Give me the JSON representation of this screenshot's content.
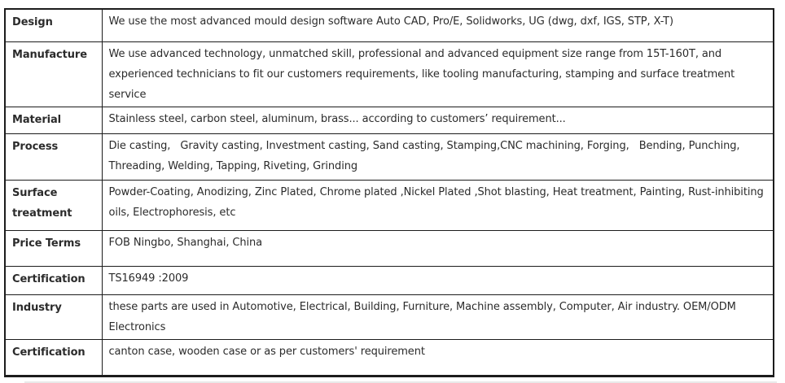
{
  "colors": {
    "border": "#1c1c1c",
    "text": "#2b2b2b",
    "background": "#ffffff"
  },
  "spec_table": {
    "rows": [
      {
        "label": "Design",
        "value": "We use the most advanced mould design software Auto CAD, Pro/E, Solidworks, UG (dwg, dxf, IGS, STP, X-T)"
      },
      {
        "label": "Manufacture",
        "value": "We use advanced technology, unmatched skill, professional and advanced equipment size range from 15T-160T, and experienced technicians to fit our customers requirements, like tooling manufacturing, stamping and surface treatment service"
      },
      {
        "label": "Material",
        "value": "Stainless steel, carbon steel, aluminum, brass... according to customers’ requirement..."
      },
      {
        "label": "Process",
        "value": "Die casting,   Gravity casting, Investment casting, Sand casting, Stamping,CNC machining, Forging,   Bending, Punching, Threading, Welding, Tapping, Riveting, Grinding"
      },
      {
        "label": "Surface treatment",
        "value": "Powder-Coating, Anodizing, Zinc Plated, Chrome plated ,Nickel Plated ,Shot blasting, Heat treatment, Painting, Rust-inhibiting oils, Electrophoresis, etc"
      },
      {
        "label": "Price Terms",
        "value": "FOB Ningbo, Shanghai, China"
      },
      {
        "label": "Certification",
        "value": "TS16949 :2009"
      },
      {
        "label": "Industry",
        "value": "these parts are used in Automotive, Electrical, Building, Furniture, Machine assembly, Computer, Air industry. OEM/ODM Electronics"
      },
      {
        "label": "Certification",
        "value": "canton case, wooden case or as per customers' requirement"
      }
    ]
  }
}
